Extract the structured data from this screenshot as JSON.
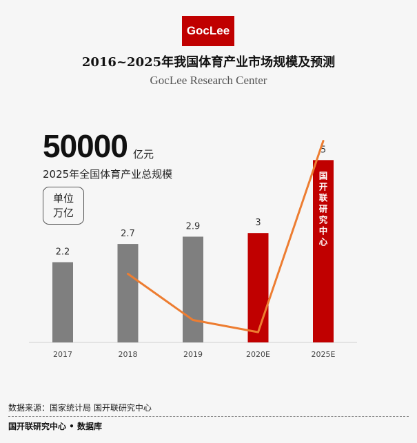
{
  "logo_text": "GocLee",
  "header": {
    "title": "2016~2025年我国体育产业市场规模及预测",
    "subtitle": "GocLee Research Center"
  },
  "highlight": {
    "value": "50000",
    "unit": "亿元",
    "caption": "2025年全国体育产业总规模"
  },
  "unit_box": {
    "line1": "单位",
    "line2": "万亿"
  },
  "chart_data": {
    "type": "bar",
    "categories": [
      "2017",
      "2018",
      "2019",
      "2020E",
      "2025E"
    ],
    "values": [
      2.2,
      2.7,
      2.9,
      3,
      5
    ],
    "value_labels": [
      "2.2",
      "2.7",
      "2.9",
      "3",
      "5"
    ],
    "bar_colors": [
      "#7f7f7f",
      "#7f7f7f",
      "#7f7f7f",
      "#c00000",
      "#c00000"
    ],
    "bar_inner_text": "国开联研究中心",
    "line_series": {
      "color": "#ed7d31",
      "values": [
        null,
        22.7,
        7.4,
        3.4,
        66.7
      ]
    },
    "ylim": [
      0,
      5.8
    ],
    "line_ylim": [
      0,
      70
    ],
    "grid": false
  },
  "footer": {
    "source": "数据来源：国家统计局 国开联研究中心",
    "brand": "国开联研究中心 • 数据库"
  }
}
